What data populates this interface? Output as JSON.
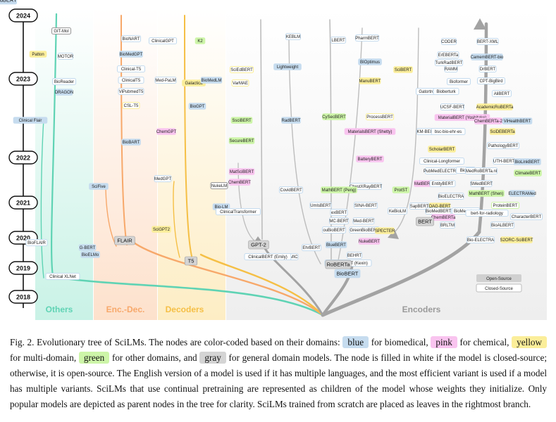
{
  "years": [
    "2024",
    "2023",
    "2022",
    "2021",
    "2020",
    "2019",
    "2018"
  ],
  "bands": [
    "Others",
    "Enc.-Dec.",
    "Decoders",
    "Encoders"
  ],
  "legend": {
    "open": "Open-Source",
    "closed": "Closed-Source"
  },
  "colors": {
    "blue": "#c6dcef",
    "pink": "#f9c4ef",
    "yellow": "#fbee9a",
    "green": "#cdf5a8",
    "gray": "#d4d4d4",
    "others": "#5fd3b4",
    "encdec": "#f7a86a",
    "decoders": "#f5bf45",
    "encoders": "#a9a9a9"
  },
  "nodes": [
    {
      "t": "GIT-Mol",
      "c": "gray",
      "f": "white"
    },
    {
      "t": "Patton",
      "c": "yellow",
      "f": "solid"
    },
    {
      "t": "MOTOR",
      "c": "blue",
      "f": "white"
    },
    {
      "t": "BioReader",
      "c": "blue",
      "f": "white"
    },
    {
      "t": "DRAGON",
      "c": "blue",
      "f": "solid"
    },
    {
      "t": "Clinical Flair",
      "c": "blue",
      "f": "solid"
    },
    {
      "t": "BioFLAIR",
      "c": "blue",
      "f": "white"
    },
    {
      "t": "G-BERT",
      "c": "blue",
      "f": "solid"
    },
    {
      "t": "BioELMo",
      "c": "blue",
      "f": "solid"
    },
    {
      "t": "BioNART",
      "c": "blue",
      "f": "white"
    },
    {
      "t": "BioMedGPT",
      "c": "blue",
      "f": "solid"
    },
    {
      "t": "Clinical-T5",
      "c": "blue",
      "f": "white"
    },
    {
      "t": "ClinicalT5",
      "c": "blue",
      "f": "white"
    },
    {
      "t": "ViPubmedT5",
      "c": "blue",
      "f": "white"
    },
    {
      "t": "CSL-T5",
      "c": "yellow",
      "f": "white"
    },
    {
      "t": "BioBART",
      "c": "blue",
      "f": "solid"
    },
    {
      "t": "SciFive",
      "c": "blue",
      "f": "solid"
    },
    {
      "t": "ClinicalGPT",
      "c": "blue",
      "f": "white"
    },
    {
      "t": "K2",
      "c": "green",
      "f": "solid"
    },
    {
      "t": "Med-PaLM",
      "c": "blue",
      "f": "white"
    },
    {
      "t": "Galactica",
      "c": "yellow",
      "f": "solid"
    },
    {
      "t": "BioMedLM",
      "c": "blue",
      "f": "solid"
    },
    {
      "t": "BioGPT",
      "c": "blue",
      "f": "solid"
    },
    {
      "t": "ChemGPT",
      "c": "pink",
      "f": "solid"
    },
    {
      "t": "MedGPT",
      "c": "blue",
      "f": "white"
    },
    {
      "t": "SciGPT2",
      "c": "yellow",
      "f": "solid"
    },
    {
      "t": "SciEdBERT",
      "c": "yellow",
      "f": "white"
    },
    {
      "t": "VarMAE",
      "c": "yellow",
      "f": "white"
    },
    {
      "t": "SsciBERT",
      "c": "green",
      "f": "solid"
    },
    {
      "t": "SecureBERT",
      "c": "green",
      "f": "solid"
    },
    {
      "t": "MatSciBERT",
      "c": "pink",
      "f": "solid"
    },
    {
      "t": "ChemBERT",
      "c": "pink",
      "f": "solid"
    },
    {
      "t": "NukeLM",
      "c": "gray",
      "f": "white"
    },
    {
      "t": "Bio-LM",
      "c": "blue",
      "f": "solid"
    },
    {
      "t": "ClinicalTransformer",
      "c": "blue",
      "f": "white"
    },
    {
      "t": "KEBLM",
      "c": "blue",
      "f": "white"
    },
    {
      "t": "Lightweight",
      "c": "blue",
      "f": "solid"
    },
    {
      "t": "RadBERT",
      "c": "blue",
      "f": "solid"
    },
    {
      "t": "CovidBERT",
      "c": "blue",
      "f": "white"
    },
    {
      "t": "UmlsBERT",
      "c": "blue",
      "f": "white"
    },
    {
      "t": "LBERT",
      "c": "blue",
      "f": "white"
    },
    {
      "t": "PharmBERT",
      "c": "blue",
      "f": "white"
    },
    {
      "t": "BIOptimus",
      "c": "blue",
      "f": "solid"
    },
    {
      "t": "ManuBERT",
      "c": "yellow",
      "f": "solid"
    },
    {
      "t": "CySecBERT",
      "c": "green",
      "f": "solid"
    },
    {
      "t": "ProcessBERT",
      "c": "yellow",
      "f": "white"
    },
    {
      "t": "MaterialsBERT (Shetty)",
      "c": "pink",
      "f": "solid"
    },
    {
      "t": "BatteryBERT",
      "c": "pink",
      "f": "solid"
    },
    {
      "t": "ChestXRayBERT",
      "c": "blue",
      "f": "white"
    },
    {
      "t": "MathBERT (Peng)",
      "c": "green",
      "f": "solid"
    },
    {
      "t": "SINA-BERT",
      "c": "blue",
      "f": "white"
    },
    {
      "t": "exBERT",
      "c": "blue",
      "f": "white"
    },
    {
      "t": "MC-BERT",
      "c": "blue",
      "f": "white"
    },
    {
      "t": "Med-BERT",
      "c": "blue",
      "f": "white"
    },
    {
      "t": "ouBioBERT",
      "c": "blue",
      "f": "white"
    },
    {
      "t": "GreenBioBERT",
      "c": "blue",
      "f": "white"
    },
    {
      "t": "SPECTER",
      "c": "yellow",
      "f": "solid"
    },
    {
      "t": "NukeBERT",
      "c": "pink",
      "f": "solid"
    },
    {
      "t": "EhrBERT",
      "c": "blue",
      "f": "white"
    },
    {
      "t": "BlueBERT",
      "c": "blue",
      "f": "solid"
    },
    {
      "t": "BEHRT",
      "c": "blue",
      "f": "white"
    },
    {
      "t": "ClinicalBERT (Kexin)",
      "c": "blue",
      "f": "white"
    },
    {
      "t": "BERT-MIMIC",
      "c": "blue",
      "f": "white"
    },
    {
      "t": "ClinicalBERT (Emily)",
      "c": "blue",
      "f": "white"
    },
    {
      "t": "SciBERT",
      "c": "yellow",
      "f": "solid"
    },
    {
      "t": "ProtST",
      "c": "green",
      "f": "solid"
    },
    {
      "t": "KeBioLM",
      "c": "blue",
      "f": "white"
    },
    {
      "t": "SapBERT",
      "c": "blue",
      "f": "white"
    },
    {
      "t": "CODER",
      "c": "blue",
      "f": "white"
    },
    {
      "t": "ErEBERTa",
      "c": "blue",
      "f": "white"
    },
    {
      "t": "TurkRadBERT",
      "c": "blue",
      "f": "white"
    },
    {
      "t": "RAMM",
      "c": "blue",
      "f": "white"
    },
    {
      "t": "Bioformer",
      "c": "blue",
      "f": "white"
    },
    {
      "t": "Gatortron",
      "c": "blue",
      "f": "white"
    },
    {
      "t": "Bioberturk",
      "c": "blue",
      "f": "white"
    },
    {
      "t": "UCSF-BERT",
      "c": "blue",
      "f": "white"
    },
    {
      "t": "MaterialBERT (Yoshitake)",
      "c": "pink",
      "f": "solid"
    },
    {
      "t": "KM-BERT",
      "c": "blue",
      "f": "white"
    },
    {
      "t": "bsc-bio-ehr-es",
      "c": "blue",
      "f": "white"
    },
    {
      "t": "ScholarBERT",
      "c": "yellow",
      "f": "solid"
    },
    {
      "t": "Clinical-Longformer",
      "c": "blue",
      "f": "white"
    },
    {
      "t": "PubMedELECTRA",
      "c": "blue",
      "f": "white"
    },
    {
      "t": "Bio-cli",
      "c": "blue",
      "f": "white"
    },
    {
      "t": "MatBERT",
      "c": "pink",
      "f": "solid"
    },
    {
      "t": "EntityBERT",
      "c": "blue",
      "f": "white"
    },
    {
      "t": "BioELECTRA",
      "c": "blue",
      "f": "white"
    },
    {
      "t": "OAG-BERT",
      "c": "yellow",
      "f": "solid"
    },
    {
      "t": "BioMedBERT",
      "c": "blue",
      "f": "white"
    },
    {
      "t": "BioMegatron",
      "c": "blue",
      "f": "white"
    },
    {
      "t": "ChemBERTa",
      "c": "pink",
      "f": "solid"
    },
    {
      "t": "BRLTM",
      "c": "blue",
      "f": "white"
    },
    {
      "t": "BERT-XML",
      "c": "blue",
      "f": "white"
    },
    {
      "t": "CamemBERT-bio",
      "c": "blue",
      "f": "solid"
    },
    {
      "t": "DrBERT",
      "c": "blue",
      "f": "white"
    },
    {
      "t": "CPT-BigBird",
      "c": "blue",
      "f": "white"
    },
    {
      "t": "AliBERT",
      "c": "blue",
      "f": "white"
    },
    {
      "t": "AcademicRoBERTa",
      "c": "yellow",
      "f": "solid"
    },
    {
      "t": "ChemBERTa-2",
      "c": "pink",
      "f": "solid"
    },
    {
      "t": "ViHealthBERT",
      "c": "blue",
      "f": "solid"
    },
    {
      "t": "SciDEBERTa",
      "c": "yellow",
      "f": "solid"
    },
    {
      "t": "PathologyBERT",
      "c": "blue",
      "f": "white"
    },
    {
      "t": "BioLinkBERT",
      "c": "blue",
      "f": "solid"
    },
    {
      "t": "UTH-BERT",
      "c": "blue",
      "f": "white"
    },
    {
      "t": "MedRoBERTa.nl",
      "c": "blue",
      "f": "white"
    },
    {
      "t": "ClimateBERT",
      "c": "green",
      "f": "solid"
    },
    {
      "t": "SMedBERT",
      "c": "blue",
      "f": "white"
    },
    {
      "t": "MathBERT (Shen)",
      "c": "green",
      "f": "solid"
    },
    {
      "t": "ELECTRAMed",
      "c": "blue",
      "f": "solid"
    },
    {
      "t": "ProteinBERT",
      "c": "green",
      "f": "white"
    },
    {
      "t": "bert-for-radiology",
      "c": "blue",
      "f": "white"
    },
    {
      "t": "CharacterBERT",
      "c": "blue",
      "f": "white"
    },
    {
      "t": "BioALBERT",
      "c": "blue",
      "f": "white"
    },
    {
      "t": "Bio-ELECTRA",
      "c": "blue",
      "f": "white"
    },
    {
      "t": "S2ORC-SciBERT",
      "c": "yellow",
      "f": "solid"
    },
    {
      "t": "Clinical XLNet",
      "c": "blue",
      "f": "white"
    },
    {
      "t": "FLAIR",
      "c": "gray",
      "f": "solid",
      "big": true
    },
    {
      "t": "T5",
      "c": "gray",
      "f": "solid",
      "big": true
    },
    {
      "t": "GPT-2",
      "c": "gray",
      "f": "solid",
      "big": true
    },
    {
      "t": "RoBERTa",
      "c": "gray",
      "f": "solid",
      "big": true
    },
    {
      "t": "BioBERT",
      "c": "blue",
      "f": "solid",
      "big": true
    },
    {
      "t": "BERT",
      "c": "gray",
      "f": "solid",
      "big": true
    },
    {
      "t": "PubMedBERT",
      "c": "blue",
      "f": "solid",
      "big": true
    }
  ],
  "caption": {
    "prefix": "Fig. 2.  Evolutionary tree of SciLMs. The nodes are color-coded based on their domains: ",
    "blue": "blue",
    "p1": " for biomedical, ",
    "pink": "pink",
    "p2": " for chemical,",
    "yellow": "yellow",
    "p3": " for multi-domain, ",
    "green": "green",
    "p4": " for other domains, and ",
    "gray": "gray",
    "p5": " for general domain models. The node is filled in white if the model is closed-source; otherwise, it is open-source. The English version of a model is used if it has multiple languages, and the most efficient variant is used if a model has multiple variants. SciLMs that use continual pretraining are represented as children of the model whose weights they initialize. Only popular models are depicted as parent nodes in the tree for clarity. SciLMs trained from scratch are placed as leaves in the rightmost branch."
  }
}
